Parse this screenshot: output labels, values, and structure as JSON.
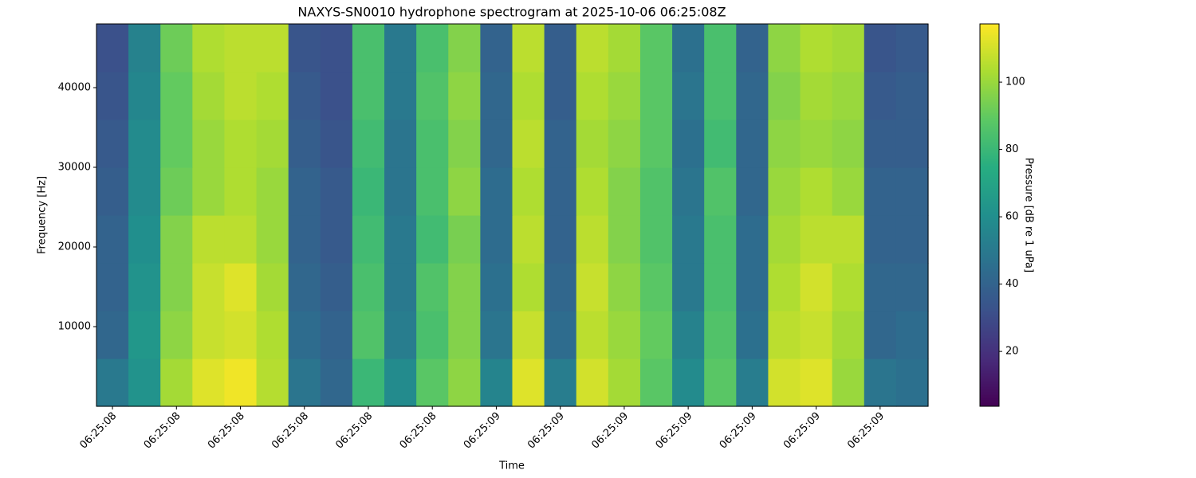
{
  "chart_data": {
    "type": "heatmap",
    "title": "NAXYS-SN0010 hydrophone spectrogram at 2025-10-06 06:25:08Z",
    "x_label": "Time",
    "y_label": "Frequency [Hz]",
    "colorbar_label": "Pressure [dB re 1 uPa]",
    "colormap": "viridis",
    "x": [
      8.4,
      8.45,
      8.5,
      8.55,
      8.6,
      8.65,
      8.7,
      8.75,
      8.8,
      8.85,
      8.9,
      8.95,
      9.0,
      9.05,
      9.1,
      9.15,
      9.2,
      9.25,
      9.3,
      9.35,
      9.4,
      9.45,
      9.5,
      9.55,
      9.6,
      9.65
    ],
    "y": [
      3000,
      9000,
      15000,
      21000,
      27000,
      33000,
      39000,
      45000
    ],
    "z": [
      [
        50,
        62,
        102,
        112,
        115,
        105,
        48,
        42,
        80,
        58,
        88,
        98,
        55,
        112,
        52,
        110,
        102,
        88,
        58,
        88,
        52,
        110,
        112,
        100,
        48,
        46
      ],
      [
        42,
        64,
        98,
        108,
        110,
        104,
        44,
        40,
        86,
        52,
        84,
        96,
        48,
        108,
        44,
        106,
        100,
        90,
        54,
        86,
        46,
        106,
        108,
        102,
        42,
        44
      ],
      [
        40,
        62,
        96,
        108,
        112,
        102,
        42,
        38,
        84,
        50,
        86,
        96,
        46,
        104,
        42,
        108,
        98,
        88,
        50,
        84,
        44,
        104,
        110,
        104,
        42,
        42
      ],
      [
        40,
        60,
        96,
        106,
        106,
        100,
        40,
        36,
        82,
        50,
        82,
        94,
        44,
        106,
        40,
        106,
        96,
        86,
        50,
        84,
        44,
        102,
        106,
        106,
        40,
        40
      ],
      [
        38,
        58,
        92,
        100,
        104,
        100,
        40,
        36,
        80,
        48,
        84,
        98,
        44,
        104,
        40,
        104,
        96,
        86,
        48,
        86,
        42,
        100,
        104,
        100,
        40,
        40
      ],
      [
        36,
        58,
        90,
        100,
        104,
        102,
        38,
        34,
        82,
        48,
        84,
        96,
        42,
        106,
        40,
        102,
        98,
        88,
        46,
        82,
        42,
        98,
        100,
        98,
        38,
        38
      ],
      [
        34,
        56,
        90,
        102,
        106,
        104,
        36,
        32,
        84,
        50,
        86,
        98,
        42,
        104,
        38,
        104,
        100,
        88,
        48,
        84,
        42,
        96,
        102,
        100,
        36,
        38
      ],
      [
        32,
        54,
        92,
        104,
        106,
        106,
        34,
        32,
        84,
        50,
        84,
        96,
        40,
        106,
        38,
        106,
        102,
        88,
        46,
        84,
        40,
        98,
        104,
        102,
        34,
        36
      ]
    ],
    "xlim": [
      8.375,
      9.675
    ],
    "ylim": [
      0,
      48000
    ],
    "clim": [
      3.7,
      117.3
    ],
    "xticks": [
      {
        "value": 8.4,
        "label": "06:25:08"
      },
      {
        "value": 8.5,
        "label": "06:25:08"
      },
      {
        "value": 8.6,
        "label": "06:25:08"
      },
      {
        "value": 8.7,
        "label": "06:25:08"
      },
      {
        "value": 8.8,
        "label": "06:25:08"
      },
      {
        "value": 8.9,
        "label": "06:25:08"
      },
      {
        "value": 9.0,
        "label": "06:25:09"
      },
      {
        "value": 9.1,
        "label": "06:25:09"
      },
      {
        "value": 9.2,
        "label": "06:25:09"
      },
      {
        "value": 9.3,
        "label": "06:25:09"
      },
      {
        "value": 9.4,
        "label": "06:25:09"
      },
      {
        "value": 9.5,
        "label": "06:25:09"
      },
      {
        "value": 9.6,
        "label": "06:25:09"
      }
    ],
    "yticks": [
      10000,
      20000,
      30000,
      40000
    ],
    "cticks": [
      20,
      40,
      60,
      80,
      100
    ]
  }
}
